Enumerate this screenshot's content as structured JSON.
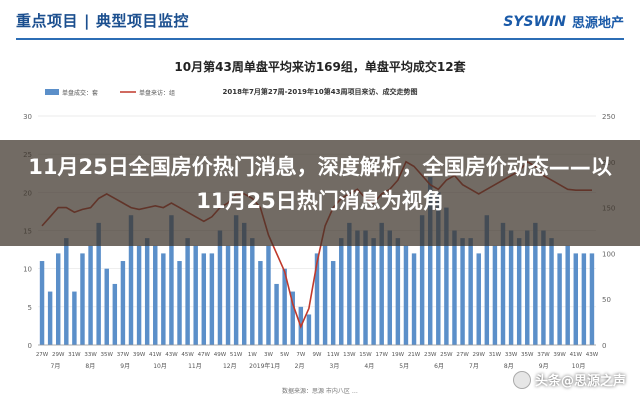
{
  "header": {
    "left_title": "重点项目",
    "right_title": "典型项目监控",
    "logo_en": "SYSWIN",
    "logo_cn": "思源地产"
  },
  "chart_title": "10月第43周单盘平均来访169组，单盘平均成交12套",
  "overlay_headline": "11月25日全国房价热门消息，深度解析，全国房价动态——以11月25日热门消息为视角",
  "source_text": "数据来源：思源 市内八区 …",
  "watermark": "头条@思源之声",
  "chart_data": {
    "type": "bar",
    "title": "10月第43周单盘平均来访169组，单盘平均成交12套",
    "subtitle": "2018年7月第27周-2019年10第43周项目来访、成交走势图",
    "legend": [
      "单盘成交：套",
      "单盘来访：组"
    ],
    "legend_position": "top-left",
    "grid": true,
    "x": [
      "27W",
      "28W",
      "29W",
      "30W",
      "31W",
      "32W",
      "33W",
      "34W",
      "35W",
      "36W",
      "37W",
      "38W",
      "39W",
      "40W",
      "41W",
      "42W",
      "43W",
      "44W",
      "45W",
      "46W",
      "47W",
      "48W",
      "49W",
      "50W",
      "51W",
      "52W",
      "1W",
      "2W",
      "3W",
      "4W",
      "5W",
      "6W",
      "7W",
      "8W",
      "9W",
      "10W",
      "11W",
      "12W",
      "13W",
      "14W",
      "15W",
      "16W",
      "17W",
      "18W",
      "19W",
      "20W",
      "21W",
      "22W",
      "23W",
      "24W",
      "25W",
      "26W",
      "27W",
      "28W",
      "29W",
      "30W",
      "31W",
      "32W",
      "33W",
      "34W",
      "35W",
      "36W",
      "37W",
      "38W",
      "39W",
      "40W",
      "41W",
      "42W",
      "43W"
    ],
    "x_tick_labels": [
      "27W",
      "29W",
      "31W",
      "33W",
      "35W",
      "37W",
      "39W",
      "41W",
      "43W",
      "45W",
      "47W",
      "49W",
      "51W",
      "1W",
      "3W",
      "5W",
      "7W",
      "9W",
      "11W",
      "13W",
      "15W",
      "17W",
      "19W",
      "21W",
      "23W",
      "25W",
      "27W",
      "29W",
      "31W",
      "33W",
      "35W",
      "37W",
      "39W",
      "41W",
      "43W"
    ],
    "month_labels": [
      "7月",
      "8月",
      "9月",
      "10月",
      "11月",
      "12月",
      "2019年1月",
      "2月",
      "3月",
      "4月",
      "5月",
      "6月",
      "7月",
      "8月",
      "9月",
      "10月"
    ],
    "y_left_range": [
      0,
      30
    ],
    "y_left_ticks": [
      0,
      5,
      10,
      15,
      20,
      25,
      30
    ],
    "y_right_range": [
      0,
      250
    ],
    "y_right_ticks": [
      0,
      50,
      100,
      150,
      200,
      250
    ],
    "series": [
      {
        "name": "单盘成交：套",
        "axis": "left",
        "color": "#5b8fc9",
        "values": [
          11,
          7,
          12,
          14,
          7,
          12,
          13,
          16,
          10,
          8,
          11,
          17,
          13,
          14,
          13,
          12,
          17,
          11,
          14,
          13,
          12,
          12,
          15,
          13,
          17,
          16,
          14,
          11,
          13,
          8,
          10,
          7,
          5,
          4,
          12,
          13,
          11,
          14,
          16,
          15,
          15,
          14,
          16,
          15,
          14,
          13,
          12,
          17,
          22,
          20,
          18,
          15,
          14,
          14,
          12,
          17,
          13,
          16,
          15,
          14,
          15,
          16,
          15,
          14,
          12,
          13,
          12,
          12,
          12
        ]
      },
      {
        "name": "单盘来访：组",
        "axis": "right",
        "color": "#c0392b",
        "values": [
          130,
          140,
          150,
          150,
          145,
          148,
          150,
          160,
          165,
          160,
          155,
          150,
          148,
          150,
          152,
          150,
          155,
          150,
          145,
          140,
          135,
          140,
          150,
          155,
          165,
          165,
          160,
          150,
          120,
          100,
          80,
          45,
          20,
          40,
          90,
          130,
          150,
          160,
          165,
          170,
          160,
          155,
          165,
          170,
          180,
          200,
          195,
          185,
          175,
          170,
          180,
          185,
          175,
          170,
          165,
          170,
          175,
          180,
          185,
          190,
          200,
          195,
          185,
          180,
          175,
          170,
          169,
          169,
          169
        ]
      }
    ]
  }
}
